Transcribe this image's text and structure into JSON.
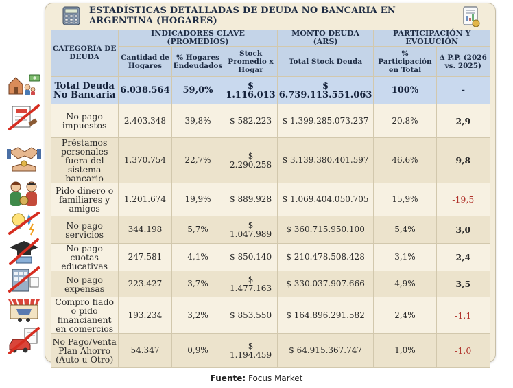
{
  "title": "ESTADÍSTICAS DETALLADAS DE DEUDA NO BANCARIA EN ARGENTINA (HOGARES)",
  "headers": {
    "category": "CATEGORÍA DE DEUDA",
    "group_indicators": "INDICADORES CLAVE (PROMEDIOS)",
    "group_amount": "MONTO DEUDA (ARS)",
    "group_share": "PARTICIPACIÓN Y EVOLUCIÓN",
    "col_households": "Cantidad de Hogares",
    "col_pct_indebted": "% Hogares Endeudados",
    "col_avg_stock": "Stock Promedio x Hogar",
    "col_total_stock": "Total Stock Deuda",
    "col_share": "% Participación en Total",
    "col_delta": "Δ P.P. (2026 vs. 2025)"
  },
  "rows": [
    {
      "category": "Total Deuda No Bancaria",
      "households": "6.038.564",
      "pct_indebted": "59,0%",
      "avg_stock": "$ 1.116.013",
      "total_stock": "$ 6.739.113.551.063",
      "share": "100%",
      "delta": "-"
    },
    {
      "category": "No pago impuestos",
      "households": "2.403.348",
      "pct_indebted": "39,8%",
      "avg_stock": "$ 582.223",
      "total_stock": "$ 1.399.285.073.237",
      "share": "20,8%",
      "delta": "2,9"
    },
    {
      "category": "Préstamos personales fuera del sistema bancario",
      "households": "1.370.754",
      "pct_indebted": "22,7%",
      "avg_stock": "$ 2.290.258",
      "total_stock": "$ 3.139.380.401.597",
      "share": "46,6%",
      "delta": "9,8"
    },
    {
      "category": "Pido dinero o familiares y amigos",
      "households": "1.201.674",
      "pct_indebted": "19,9%",
      "avg_stock": "$ 889.928",
      "total_stock": "$ 1.069.404.050.705",
      "share": "15,9%",
      "delta": "-19,5"
    },
    {
      "category": "No pago servicios",
      "households": "344.198",
      "pct_indebted": "5,7%",
      "avg_stock": "$ 1.047.989",
      "total_stock": "$ 360.715.950.100",
      "share": "5,4%",
      "delta": "3,0"
    },
    {
      "category": "No pago cuotas educativas",
      "households": "247.581",
      "pct_indebted": "4,1%",
      "avg_stock": "$ 850.140",
      "total_stock": "$ 210.478.508.428",
      "share": "3,1%",
      "delta": "2,4"
    },
    {
      "category": "No pago expensas",
      "households": "223.427",
      "pct_indebted": "3,7%",
      "avg_stock": "$ 1.477.163",
      "total_stock": "$ 330.037.907.666",
      "share": "4,9%",
      "delta": "3,5"
    },
    {
      "category": "Compro fiado o pido financianent en comercios",
      "households": "193.234",
      "pct_indebted": "3,2%",
      "avg_stock": "$ 853.550",
      "total_stock": "$ 164.896.291.582",
      "share": "2,4%",
      "delta": "-1,1"
    },
    {
      "category": "No Pago/Venta Plan Ahorro (Auto u Otro)",
      "households": "54.347",
      "pct_indebted": "0,9%",
      "avg_stock": "$ 1.194.459",
      "total_stock": "$ 64.915.367.747",
      "share": "1,0%",
      "delta": "-1,0"
    }
  ],
  "source": {
    "label": "Fuente:",
    "value": "Focus Market"
  },
  "colors": {
    "header": "#c4d4e8",
    "total_row": "#c9d9ee",
    "negative": "#b0312a",
    "card": "#f3ecd9"
  }
}
